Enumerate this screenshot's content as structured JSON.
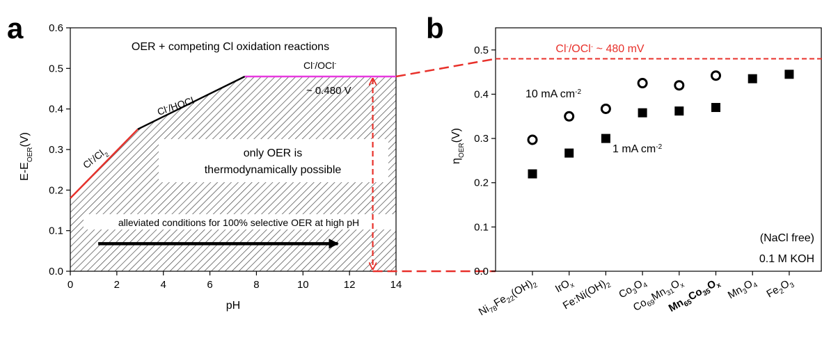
{
  "chart_data": [
    {
      "panel": "a",
      "type": "line",
      "title": "OER + competing Cl oxidation reactions",
      "xlabel": "pH",
      "ylabel": "E-E",
      "ylabel_sub": "OER",
      "ylabel_unit": "(V)",
      "xlim": [
        0,
        14
      ],
      "ylim": [
        0,
        0.6
      ],
      "xticks": [
        "0",
        "2",
        "4",
        "6",
        "8",
        "10",
        "12",
        "14"
      ],
      "yticks": [
        "0.0",
        "0.1",
        "0.2",
        "0.3",
        "0.4",
        "0.5",
        "0.6"
      ],
      "xtick_values": [
        0,
        2,
        4,
        6,
        8,
        10,
        12,
        14
      ],
      "ytick_values": [
        0,
        0.1,
        0.2,
        0.3,
        0.4,
        0.5,
        0.6
      ],
      "series": [
        {
          "name": "Cl⁻/Cl₂",
          "color": "#e8302a",
          "x": [
            0,
            2.9
          ],
          "y": [
            0.18,
            0.35
          ]
        },
        {
          "name": "Cl⁻/HOCl",
          "color": "#000000",
          "x": [
            2.9,
            7.5
          ],
          "y": [
            0.35,
            0.48
          ]
        },
        {
          "name": "Cl⁻/OCl⁻",
          "color": "#e83ae0",
          "x": [
            7.5,
            14
          ],
          "y": [
            0.48,
            0.48
          ]
        }
      ],
      "annotations": {
        "cl2_main": "Cl",
        "cl2_sup": "-",
        "cl2_tail": "/Cl",
        "cl2_sub": "2",
        "hocl_main": "Cl",
        "hocl_sup": "-",
        "hocl_tail": "/HOCl",
        "ocl_main": "Cl",
        "ocl_sup": "-",
        "ocl_tail": "/OCl",
        "ocl_sup2": "-",
        "value_label": "~ 0.480 V",
        "region_line1": "only OER is",
        "region_line2": "thermodynamically possible",
        "arrow_label": "alleviated conditions for 100% selective OER at high pH",
        "arrow_x": [
          1.2,
          11.5
        ],
        "arrow_y": 0.068,
        "vline_x": 13,
        "vline_y": [
          0,
          0.48
        ]
      }
    },
    {
      "panel": "b",
      "type": "scatter",
      "ylabel": "η",
      "ylabel_sub": "OER",
      "ylabel_unit": "(V)",
      "ylim": [
        0,
        0.55
      ],
      "yticks": [
        "0.0",
        "0.1",
        "0.2",
        "0.3",
        "0.4",
        "0.5"
      ],
      "ytick_values": [
        0,
        0.1,
        0.2,
        0.3,
        0.4,
        0.5
      ],
      "categories": [
        [
          {
            "t": "Ni"
          },
          {
            "t": "78",
            "s": "sub"
          },
          {
            "t": "Fe"
          },
          {
            "t": "22",
            "s": "sub"
          },
          {
            "t": "(OH)"
          },
          {
            "t": "2",
            "s": "sub"
          }
        ],
        [
          {
            "t": "IrO"
          },
          {
            "t": "x",
            "s": "sub"
          }
        ],
        [
          {
            "t": "Fe:Ni(OH)"
          },
          {
            "t": "2",
            "s": "sub"
          }
        ],
        [
          {
            "t": "Co"
          },
          {
            "t": "3",
            "s": "sub"
          },
          {
            "t": "O"
          },
          {
            "t": "4",
            "s": "sub"
          }
        ],
        [
          {
            "t": "Co"
          },
          {
            "t": "69",
            "s": "sub"
          },
          {
            "t": "Mn"
          },
          {
            "t": "31",
            "s": "sub"
          },
          {
            "t": "O"
          },
          {
            "t": "x",
            "s": "sub"
          }
        ],
        [
          {
            "t": "Mn"
          },
          {
            "t": "65",
            "s": "sub"
          },
          {
            "t": "Co"
          },
          {
            "t": "35",
            "s": "sub"
          },
          {
            "t": "O"
          },
          {
            "t": "x",
            "s": "sub"
          }
        ],
        [
          {
            "t": "Mn"
          },
          {
            "t": "3",
            "s": "sub"
          },
          {
            "t": "O"
          },
          {
            "t": "4",
            "s": "sub"
          }
        ],
        [
          {
            "t": "Fe"
          },
          {
            "t": "2",
            "s": "sub"
          },
          {
            "t": "O"
          },
          {
            "t": "3",
            "s": "sub"
          }
        ]
      ],
      "bold_category_index": 5,
      "series": [
        {
          "name": "10 mA cm-2",
          "marker": "open-circle",
          "values": [
            0.297,
            0.35,
            0.367,
            0.425,
            0.42,
            0.442,
            null,
            null
          ]
        },
        {
          "name": "1 mA cm-2",
          "marker": "filled-square",
          "values": [
            0.22,
            0.267,
            0.3,
            0.358,
            0.362,
            0.37,
            0.435,
            0.445
          ]
        }
      ],
      "reference_line": {
        "y": 0.48,
        "color": "#e8302a",
        "label": "Cl⁻/OCl⁻ ~ 480 mV"
      },
      "labels": {
        "ten_main": "10 mA cm",
        "ten_sup": "-2",
        "one_main": "1 mA cm",
        "one_sup": "-2",
        "ref_main": "Cl",
        "ref_sup": "-",
        "ref_mid": "/OCl",
        "ref_sup2": "-",
        "ref_tail": " ~ 480 mV",
        "note1": "(NaCl free)",
        "note2": "0.1 M KOH"
      }
    }
  ],
  "panel_labels": {
    "a": "a",
    "b": "b"
  },
  "colors": {
    "red_line": "#e8302a",
    "magenta_line": "#e83ae0",
    "hatch": "#333333"
  }
}
